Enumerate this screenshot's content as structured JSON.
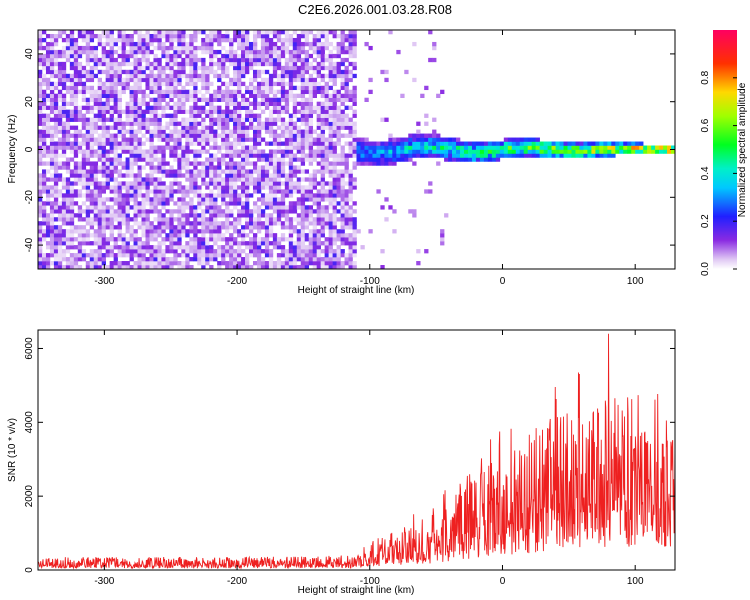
{
  "title": "C2E6.2026.001.03.28.R08",
  "chart_data": [
    {
      "type": "heatmap",
      "name": "spectrogram",
      "xlabel": "Height of straight line (km)",
      "ylabel": "Frequency (Hz)",
      "xlim": [
        -350,
        130
      ],
      "ylim": [
        -50,
        50
      ],
      "xticks": [
        -300,
        -200,
        -100,
        0,
        100
      ],
      "yticks": [
        -40,
        -20,
        0,
        20,
        40
      ],
      "tick_labels_x": [
        "-300",
        "-200",
        "-100",
        "0",
        "100"
      ],
      "tick_labels_y": [
        "-40",
        "-20",
        "0",
        "20",
        "40"
      ],
      "colorbar": {
        "label": "Normalized spectral amplitude",
        "range": [
          0,
          1
        ],
        "ticks": [
          0.0,
          0.2,
          0.4,
          0.6,
          0.8
        ],
        "tick_labels": [
          "0.0",
          "0.2",
          "0.4",
          "0.6",
          "0.8"
        ],
        "colormap": "rainbow (white-violet-blue-cyan-green-yellow-red-magenta)"
      },
      "description_regions": {
        "noise_region_x": [
          -350,
          -110
        ],
        "noise_amplitude": [
          0.0,
          0.2
        ],
        "signal_band_center_hz": 0,
        "signal_band_halfwidth_hz": [
          6,
          2
        ],
        "signal_region_x": [
          -120,
          130
        ],
        "signal_amplitude": [
          0.3,
          0.95
        ]
      }
    },
    {
      "type": "line",
      "name": "snr",
      "xlabel": "Height of straight line (km)",
      "ylabel": "SNR (10 * v/v)",
      "xlim": [
        -350,
        130
      ],
      "ylim": [
        0,
        6500
      ],
      "xticks": [
        -300,
        -200,
        -100,
        0,
        100
      ],
      "yticks": [
        0,
        2000,
        4000,
        6000
      ],
      "tick_labels_x": [
        "-300",
        "-200",
        "-100",
        "0",
        "100"
      ],
      "tick_labels_y": [
        "0",
        "2000",
        "4000",
        "6000"
      ],
      "color": "#ee2020",
      "envelope": {
        "x": [
          -350,
          -300,
          -200,
          -110,
          -100,
          -80,
          -60,
          -40,
          -20,
          0,
          20,
          40,
          60,
          80,
          100,
          120,
          130
        ],
        "baseline": [
          150,
          150,
          150,
          180,
          300,
          450,
          550,
          700,
          900,
          1200,
          1500,
          1800,
          2000,
          2100,
          2100,
          2000,
          2000
        ],
        "typical_peak": [
          350,
          350,
          350,
          400,
          800,
          1100,
          1400,
          1800,
          2500,
          3200,
          3800,
          4200,
          4400,
          4800,
          4200,
          3800,
          3500
        ]
      },
      "max_point": {
        "x": 80,
        "y": 6400
      }
    }
  ]
}
